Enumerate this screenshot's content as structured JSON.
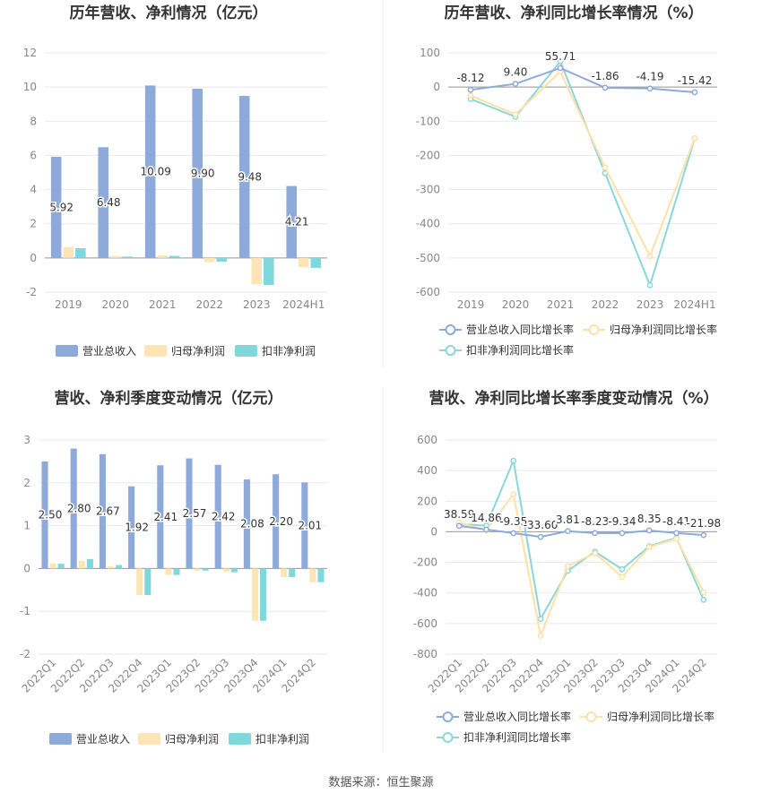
{
  "colors": {
    "revenue": "#8eaadb",
    "net_profit": "#ffe4b5",
    "deducted_profit": "#7fd8dc",
    "revenue_line": "#8eaadb",
    "net_line": "#ffe0a6",
    "deducted_line": "#8ad6da",
    "grid": "#e6e9f0",
    "axis_text": "#888888",
    "title": "#333333"
  },
  "source": "数据来源：恒生聚源",
  "chart_data": [
    {
      "type": "bar",
      "title": "历年营收、净利情况（亿元）",
      "categories": [
        "2019",
        "2020",
        "2021",
        "2022",
        "2023",
        "2024H1"
      ],
      "ylim": [
        -2,
        12
      ],
      "yticks": [
        -2,
        0,
        2,
        4,
        6,
        8,
        10,
        12
      ],
      "series": [
        {
          "name": "营业总收入",
          "values": [
            5.92,
            6.48,
            10.09,
            9.9,
            9.48,
            4.21
          ],
          "labels": [
            "5.92",
            "6.48",
            "10.09",
            "9.90",
            "9.48",
            "4.21"
          ]
        },
        {
          "name": "归母净利润",
          "values": [
            0.62,
            0.12,
            0.15,
            -0.25,
            -1.55,
            -0.55
          ]
        },
        {
          "name": "扣非净利润",
          "values": [
            0.57,
            0.08,
            0.12,
            -0.22,
            -1.58,
            -0.58
          ]
        }
      ],
      "legend": "bottom"
    },
    {
      "type": "line",
      "title": "历年营收、净利同比增长率情况（%）",
      "categories": [
        "2019",
        "2020",
        "2021",
        "2022",
        "2023",
        "2024H1"
      ],
      "ylim": [
        -600,
        100
      ],
      "yticks": [
        -600,
        -500,
        -400,
        -300,
        -200,
        -100,
        0,
        100
      ],
      "series": [
        {
          "name": "营业总收入同比增长率",
          "values": [
            -8.12,
            9.4,
            55.71,
            -1.86,
            -4.19,
            -15.42
          ],
          "labels": [
            "-8.12",
            "9.40",
            "55.71",
            "-1.86",
            "-4.19",
            "-15.42"
          ]
        },
        {
          "name": "归母净利润同比增长率",
          "values": [
            -25,
            -80,
            45,
            -235,
            -495,
            -150
          ]
        },
        {
          "name": "扣非净利润同比增长率",
          "values": [
            -35,
            -87,
            75,
            -252,
            -580,
            -150
          ]
        }
      ],
      "legend": "bottom"
    },
    {
      "type": "bar",
      "title": "营收、净利季度变动情况（亿元）",
      "categories": [
        "2022Q1",
        "2022Q2",
        "2022Q3",
        "2022Q4",
        "2023Q1",
        "2023Q2",
        "2023Q3",
        "2023Q4",
        "2024Q1",
        "2024Q2"
      ],
      "ylim": [
        -2,
        3
      ],
      "yticks": [
        -2,
        -1,
        0,
        1,
        2,
        3
      ],
      "series": [
        {
          "name": "营业总收入",
          "values": [
            2.5,
            2.8,
            2.67,
            1.92,
            2.41,
            2.57,
            2.42,
            2.08,
            2.2,
            2.01
          ],
          "labels": [
            "2.50",
            "2.80",
            "2.67",
            "1.92",
            "2.41",
            "2.57",
            "2.42",
            "2.08",
            "2.20",
            "2.01"
          ]
        },
        {
          "name": "归母净利润",
          "values": [
            0.12,
            0.18,
            0.05,
            -0.62,
            -0.15,
            -0.05,
            -0.08,
            -1.22,
            -0.2,
            -0.32
          ]
        },
        {
          "name": "扣非净利润",
          "values": [
            0.11,
            0.22,
            0.08,
            -0.62,
            -0.15,
            -0.05,
            -0.09,
            -1.22,
            -0.2,
            -0.32
          ]
        }
      ],
      "legend": "bottom"
    },
    {
      "type": "line",
      "title": "营收、净利同比增长率季度变动情况（%）",
      "categories": [
        "2022Q1",
        "2022Q2",
        "2022Q3",
        "2022Q4",
        "2023Q1",
        "2023Q2",
        "2023Q3",
        "2023Q4",
        "2024Q1",
        "2024Q2"
      ],
      "ylim": [
        -800,
        600
      ],
      "yticks": [
        -800,
        -600,
        -400,
        -200,
        0,
        200,
        400,
        600
      ],
      "series": [
        {
          "name": "营业总收入同比增长率",
          "values": [
            38.59,
            14.86,
            -9.35,
            -33.6,
            3.81,
            -8.23,
            -9.34,
            8.35,
            -8.41,
            -21.98
          ],
          "labels": [
            "38.59",
            "14.86",
            "-9.35",
            "-33.60",
            "3.81",
            "-8.23",
            "-9.34",
            "8.35",
            "-8.41",
            "-21.98"
          ]
        },
        {
          "name": "归母净利润同比增长率",
          "values": [
            60,
            10,
            245,
            -680,
            -225,
            -140,
            -295,
            -100,
            -45,
            -395
          ]
        },
        {
          "name": "扣非净利润同比增长率",
          "values": [
            50,
            40,
            465,
            -570,
            -255,
            -130,
            -245,
            -95,
            -40,
            -445
          ]
        }
      ],
      "legend": "bottom"
    }
  ]
}
